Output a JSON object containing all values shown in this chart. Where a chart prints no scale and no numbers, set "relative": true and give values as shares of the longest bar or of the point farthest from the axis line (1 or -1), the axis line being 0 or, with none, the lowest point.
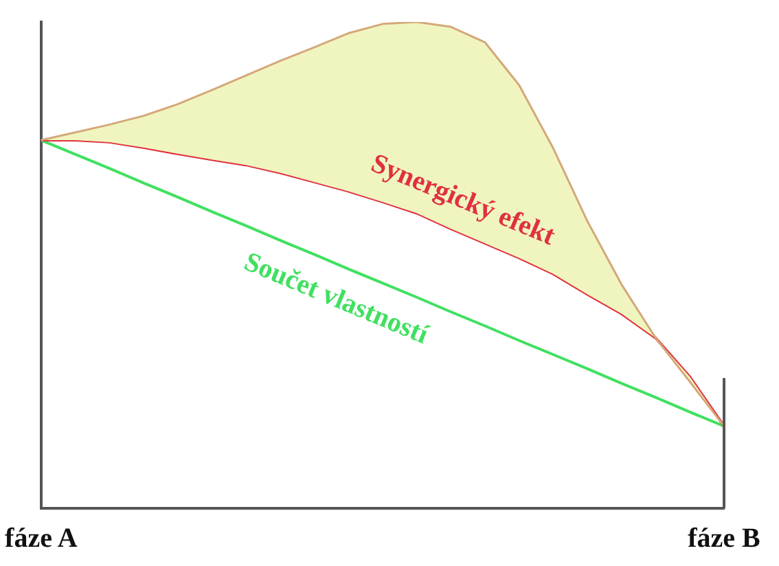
{
  "chart_data": {
    "type": "line",
    "relative": true,
    "categories": [
      "fáze A",
      null,
      null,
      null,
      null,
      null,
      null,
      null,
      null,
      null,
      null,
      null,
      null,
      null,
      null,
      null,
      null,
      null,
      null,
      null,
      "fáze B"
    ],
    "grid": false,
    "legend": false,
    "marker": "none",
    "line_style": "solid",
    "series": [
      {
        "type": "area",
        "color": "#d4a878",
        "values": [
          0.757,
          0.773,
          0.789,
          0.807,
          0.831,
          0.86,
          0.89,
          0.92,
          0.948,
          0.977,
          0.996,
          1,
          0.99,
          0.958,
          0.87,
          0.74,
          0.59,
          0.46,
          0.35,
          0.26,
          0.169
        ]
      },
      {
        "name": "Synergický efekt",
        "color": "#e03040",
        "values": [
          0.757,
          0.757,
          0.753,
          0.742,
          0.729,
          0.717,
          0.706,
          0.69,
          0.671,
          0.652,
          0.63,
          0.607,
          0.575,
          0.545,
          0.515,
          0.482,
          0.44,
          0.4,
          0.35,
          0.27,
          0.169
        ]
      },
      {
        "name": "Součet vlastností",
        "color": "#40e060",
        "values": [
          0.757,
          0.728,
          0.699,
          0.669,
          0.64,
          0.61,
          0.581,
          0.551,
          0.522,
          0.492,
          0.463,
          0.434,
          0.404,
          0.375,
          0.345,
          0.316,
          0.287,
          0.257,
          0.228,
          0.198,
          0.169
        ]
      }
    ]
  }
}
